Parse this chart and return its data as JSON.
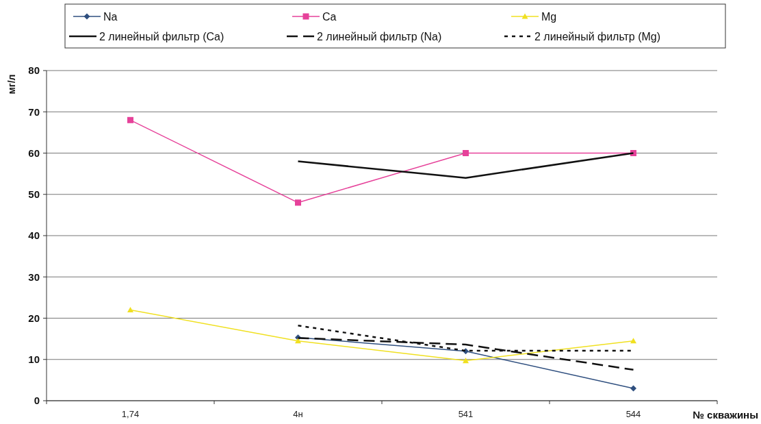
{
  "chart_data": {
    "type": "line",
    "ylabel": "мг/л",
    "xlabel": "№ скважины",
    "categories": [
      "1,74",
      "4н",
      "541",
      "544"
    ],
    "ylim": [
      0,
      80
    ],
    "yticks": [
      0,
      10,
      20,
      30,
      40,
      50,
      60,
      70,
      80
    ],
    "grid": "y",
    "legend": "top",
    "series": [
      {
        "name": "Na",
        "color": "#2f4f7f",
        "marker": "diamond",
        "line_style": "solid",
        "values": [
          null,
          15.3,
          12,
          3
        ]
      },
      {
        "name": "Ca",
        "color": "#e6429a",
        "marker": "square",
        "line_style": "solid",
        "values": [
          68,
          48,
          60,
          60
        ]
      },
      {
        "name": "Mg",
        "color": "#f0e020",
        "marker": "triangle",
        "line_style": "solid",
        "values": [
          22,
          14.5,
          9.7,
          14.5
        ]
      },
      {
        "name": "2 линейный фильтр (Ca)",
        "color": "#111111",
        "marker": "none",
        "line_style": "solid",
        "values": [
          null,
          58,
          54,
          60
        ]
      },
      {
        "name": "2 линейный фильтр (Na)",
        "color": "#111111",
        "marker": "none",
        "line_style": "dashed",
        "values": [
          null,
          15.2,
          13.6,
          7.5
        ]
      },
      {
        "name": "2 линейный фильтр (Mg)",
        "color": "#111111",
        "marker": "none",
        "line_style": "dotted",
        "values": [
          null,
          18.2,
          12.1,
          12.1
        ]
      }
    ]
  }
}
